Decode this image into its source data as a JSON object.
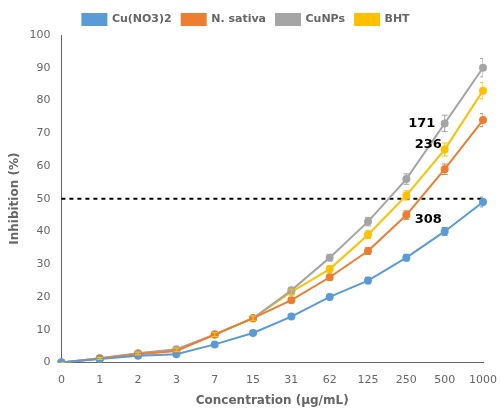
{
  "chart_data": {
    "type": "line",
    "categories": [
      0,
      1,
      2,
      3,
      7,
      15,
      31,
      62,
      125,
      250,
      500,
      1000
    ],
    "xlabel": "Concentration (μg/mL)",
    "ylabel": "Inhibition (%)",
    "series": [
      {
        "name": "Cu(NO3)2",
        "color": "#5B9BD5",
        "values": [
          0,
          1.0,
          2.0,
          2.5,
          5.5,
          9.0,
          14.0,
          20.0,
          25.0,
          32.0,
          40.0,
          49.0
        ],
        "errors": [
          0,
          0.3,
          0.3,
          0.3,
          0.4,
          0.5,
          0.6,
          0.8,
          1.0,
          1.0,
          1.2,
          1.5
        ]
      },
      {
        "name": "N. sativa",
        "color": "#ED7D31",
        "values": [
          0,
          1.2,
          2.5,
          3.5,
          8.5,
          13.5,
          19.0,
          26.0,
          34.0,
          45.0,
          59.0,
          74.0
        ],
        "errors": [
          0,
          0.3,
          0.4,
          0.4,
          0.5,
          0.6,
          0.7,
          0.9,
          1.0,
          1.3,
          1.6,
          2.0
        ]
      },
      {
        "name": "CuNPs",
        "color": "#A5A5A5",
        "values": [
          0,
          1.3,
          2.8,
          4.0,
          8.5,
          13.5,
          22.0,
          32.0,
          43.0,
          56.0,
          73.0,
          90.0
        ],
        "errors": [
          0,
          0.3,
          0.4,
          0.5,
          0.6,
          0.7,
          0.9,
          1.0,
          1.3,
          1.6,
          2.5,
          2.8
        ]
      },
      {
        "name": "BHT",
        "color": "#FFC000",
        "values": [
          0,
          1.2,
          2.7,
          3.8,
          8.5,
          13.5,
          21.5,
          28.5,
          39.0,
          51.0,
          65.0,
          83.0
        ],
        "errors": [
          0,
          0.3,
          0.4,
          0.5,
          0.6,
          0.7,
          0.8,
          1.0,
          1.2,
          1.4,
          2.0,
          2.5
        ]
      }
    ],
    "hline": 50,
    "annotations": [
      {
        "text": "171",
        "x": 9.05,
        "y": 71.0
      },
      {
        "text": "236",
        "x": 9.22,
        "y": 64.5
      },
      {
        "text": "308",
        "x": 9.22,
        "y": 41.5
      }
    ],
    "ylim": [
      0,
      100
    ],
    "yticks": [
      0,
      10,
      20,
      30,
      40,
      50,
      60,
      70,
      80,
      90,
      100
    ],
    "grid": false,
    "legend": "top",
    "marker": "circle"
  }
}
